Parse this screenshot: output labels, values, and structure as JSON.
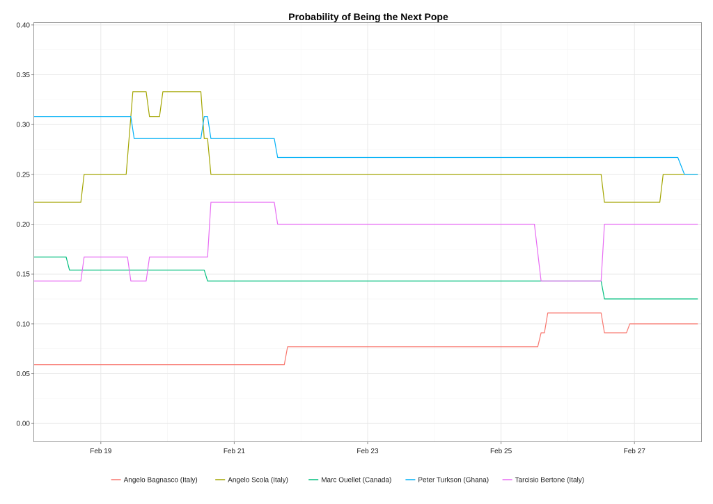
{
  "chart_data": {
    "type": "line",
    "title": "Probability of Being the Next Pope",
    "xlabel": "",
    "ylabel": "",
    "xlim": [
      18.0,
      28.0
    ],
    "ylim": [
      -0.018,
      0.402
    ],
    "y_ticks": [
      0.0,
      0.05,
      0.1,
      0.15,
      0.2,
      0.25,
      0.3,
      0.35,
      0.4
    ],
    "y_tick_labels": [
      "0.00",
      "0.05",
      "0.10",
      "0.15",
      "0.20",
      "0.25",
      "0.30",
      "0.35",
      "0.40"
    ],
    "x_ticks": [
      19,
      21,
      23,
      25,
      27
    ],
    "x_tick_labels": [
      "Feb 19",
      "Feb 21",
      "Feb 23",
      "Feb 25",
      "Feb 27"
    ],
    "grid": true,
    "legend_position": "bottom",
    "series": [
      {
        "name": "Angelo Bagnasco (Italy)",
        "color": "#f8766d",
        "points": [
          [
            18.0,
            0.059
          ],
          [
            21.75,
            0.059
          ],
          [
            21.8,
            0.077
          ],
          [
            25.55,
            0.077
          ],
          [
            25.6,
            0.091
          ],
          [
            25.65,
            0.091
          ],
          [
            25.7,
            0.111
          ],
          [
            26.5,
            0.111
          ],
          [
            26.55,
            0.091
          ],
          [
            26.88,
            0.091
          ],
          [
            26.93,
            0.1
          ],
          [
            27.95,
            0.1
          ]
        ]
      },
      {
        "name": "Angelo Scola (Italy)",
        "color": "#a3a500",
        "points": [
          [
            18.0,
            0.222
          ],
          [
            18.7,
            0.222
          ],
          [
            18.75,
            0.25
          ],
          [
            19.38,
            0.25
          ],
          [
            19.48,
            0.333
          ],
          [
            19.68,
            0.333
          ],
          [
            19.73,
            0.308
          ],
          [
            19.88,
            0.308
          ],
          [
            19.93,
            0.333
          ],
          [
            20.5,
            0.333
          ],
          [
            20.55,
            0.286
          ],
          [
            20.6,
            0.286
          ],
          [
            20.65,
            0.25
          ],
          [
            26.5,
            0.25
          ],
          [
            26.55,
            0.222
          ],
          [
            27.38,
            0.222
          ],
          [
            27.43,
            0.25
          ],
          [
            27.95,
            0.25
          ]
        ]
      },
      {
        "name": "Marc Ouellet (Canada)",
        "color": "#00bf7d",
        "points": [
          [
            18.0,
            0.167
          ],
          [
            18.48,
            0.167
          ],
          [
            18.53,
            0.154
          ],
          [
            20.55,
            0.154
          ],
          [
            20.6,
            0.143
          ],
          [
            26.5,
            0.143
          ],
          [
            26.55,
            0.125
          ],
          [
            27.95,
            0.125
          ]
        ]
      },
      {
        "name": "Peter Turkson (Ghana)",
        "color": "#00b0f6",
        "points": [
          [
            18.0,
            0.308
          ],
          [
            19.45,
            0.308
          ],
          [
            19.5,
            0.286
          ],
          [
            20.5,
            0.286
          ],
          [
            20.55,
            0.308
          ],
          [
            20.6,
            0.308
          ],
          [
            20.65,
            0.286
          ],
          [
            21.6,
            0.286
          ],
          [
            21.65,
            0.267
          ],
          [
            27.65,
            0.267
          ],
          [
            27.75,
            0.25
          ],
          [
            27.95,
            0.25
          ]
        ]
      },
      {
        "name": "Tarcisio Bertone (Italy)",
        "color": "#e76bf3",
        "points": [
          [
            18.0,
            0.143
          ],
          [
            18.7,
            0.143
          ],
          [
            18.75,
            0.167
          ],
          [
            19.4,
            0.167
          ],
          [
            19.45,
            0.143
          ],
          [
            19.68,
            0.143
          ],
          [
            19.73,
            0.167
          ],
          [
            20.6,
            0.167
          ],
          [
            20.65,
            0.222
          ],
          [
            21.6,
            0.222
          ],
          [
            21.65,
            0.2
          ],
          [
            25.5,
            0.2
          ],
          [
            25.6,
            0.143
          ],
          [
            26.5,
            0.143
          ],
          [
            26.55,
            0.2
          ],
          [
            27.95,
            0.2
          ]
        ]
      }
    ]
  }
}
